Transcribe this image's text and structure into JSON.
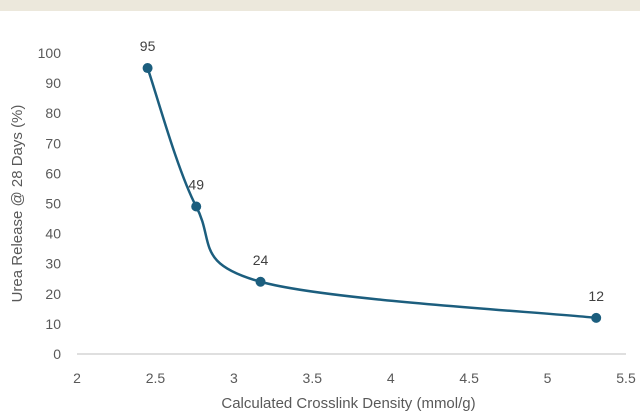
{
  "chart_data": {
    "type": "scatter",
    "title": "",
    "xlabel": "Calculated Crosslink Density (mmol/g)",
    "ylabel": "Urea Release @ 28 Days (%)",
    "xlim": [
      2,
      5.5
    ],
    "ylim": [
      0,
      100
    ],
    "x_ticks": [
      "2",
      "2.5",
      "3",
      "3.5",
      "4",
      "4.5",
      "5",
      "5.5"
    ],
    "y_ticks": [
      "0",
      "10",
      "20",
      "30",
      "40",
      "50",
      "60",
      "70",
      "80",
      "90",
      "100"
    ],
    "smoothed_line": true,
    "grid": false,
    "legend": "none",
    "series": [
      {
        "color": "#1c5e7e",
        "points": [
          {
            "x": 2.45,
            "y": 95,
            "label": "95"
          },
          {
            "x": 2.76,
            "y": 49,
            "label": "49"
          },
          {
            "x": 3.17,
            "y": 24,
            "label": "24"
          },
          {
            "x": 5.31,
            "y": 12,
            "label": "12"
          }
        ]
      }
    ]
  }
}
